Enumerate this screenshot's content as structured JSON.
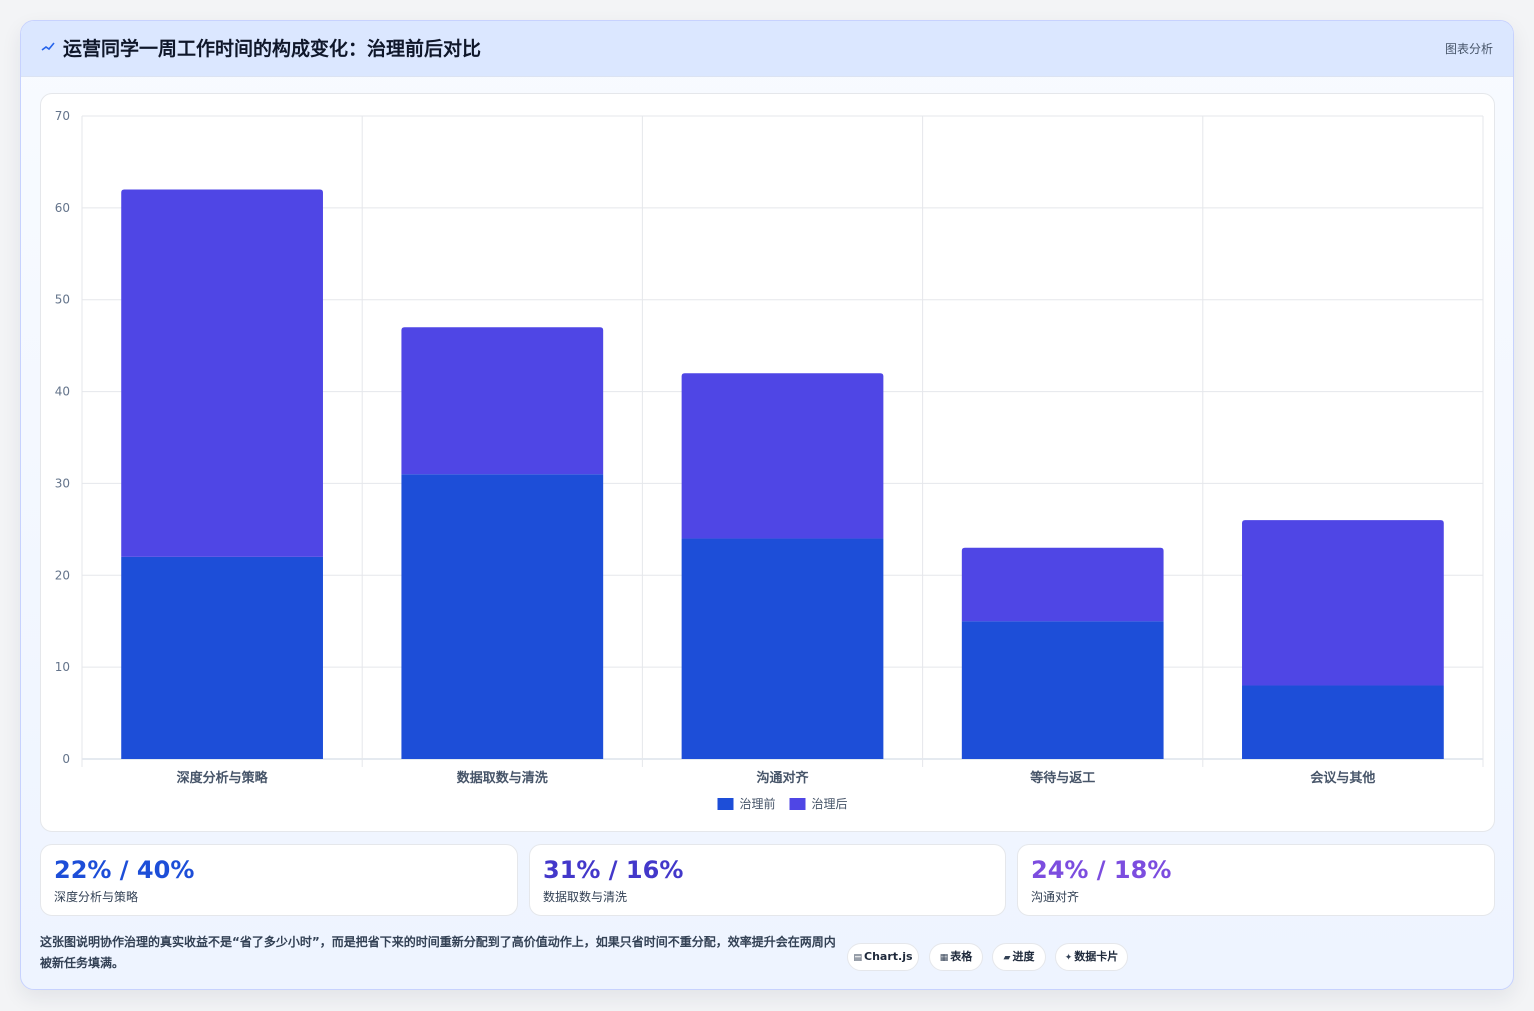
{
  "header": {
    "title": "运营同学一周工作时间的构成变化：治理前后对比",
    "right_label": "图表分析",
    "icon": "chart-line-icon"
  },
  "chart_data": {
    "type": "bar",
    "stacked": true,
    "categories": [
      "深度分析与策略",
      "数据取数与清洗",
      "沟通对齐",
      "等待与返工",
      "会议与其他"
    ],
    "series": [
      {
        "name": "治理前",
        "values": [
          22,
          31,
          24,
          15,
          8
        ],
        "color": "#1d4ed8"
      },
      {
        "name": "治理后",
        "values": [
          40,
          16,
          18,
          8,
          18
        ],
        "color": "#4f46e5"
      }
    ],
    "ylim": [
      0,
      70
    ],
    "yticks": [
      0,
      10,
      20,
      30,
      40,
      50,
      60,
      70
    ],
    "grid": true,
    "legend_position": "bottom"
  },
  "stats": [
    {
      "value": "22% / 40%",
      "label": "深度分析与策略",
      "color": "#1d4ed8"
    },
    {
      "value": "31% / 16%",
      "label": "数据取数与清洗",
      "color": "#4338ca"
    },
    {
      "value": "24% / 18%",
      "label": "沟通对齐",
      "color": "#7c4ddf"
    }
  ],
  "footnote": "这张图说明协作治理的真实收益不是“省了多少小时”，而是把省下来的时间重新分配到了高价值动作上，如果只省时间不重分配，效率提升会在两周内被新任务填满。",
  "tags": [
    {
      "icon": "▤",
      "icon_name": "chart-icon",
      "label": "Chart.js"
    },
    {
      "icon": "▦",
      "icon_name": "table-icon",
      "label": "表格"
    },
    {
      "icon": "▰",
      "icon_name": "progress-icon",
      "label": "进度"
    },
    {
      "icon": "✦",
      "icon_name": "sparkle-icon",
      "label": "数据卡片"
    }
  ]
}
